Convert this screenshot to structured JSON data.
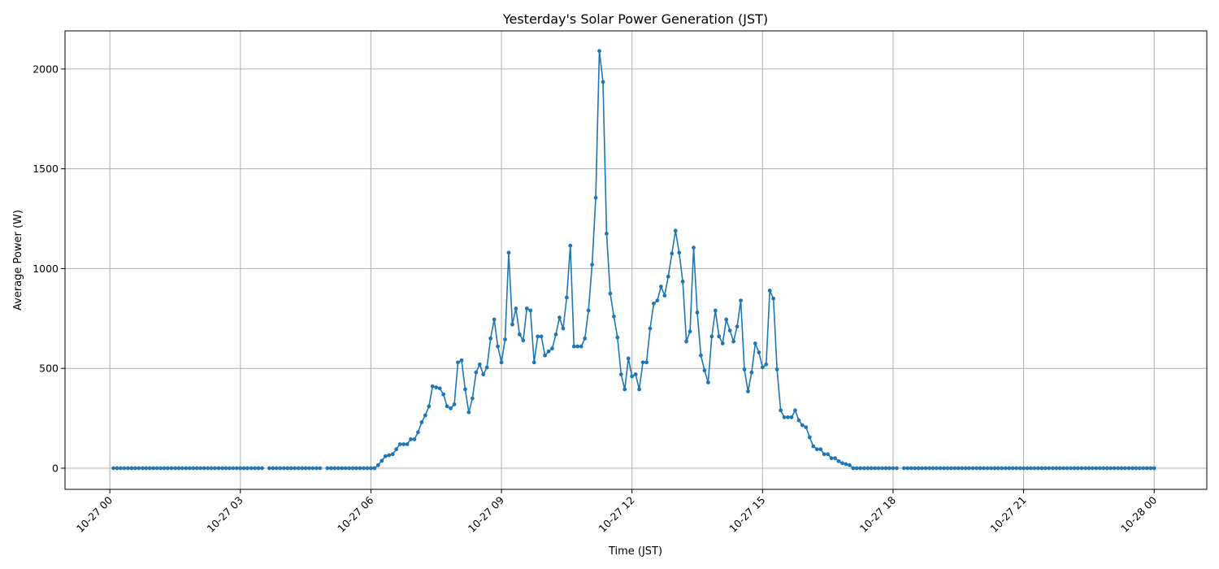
{
  "chart_data": {
    "type": "line",
    "title": "Yesterday's Solar Power Generation (JST)",
    "xlabel": "Time (JST)",
    "ylabel": "Average Power (W)",
    "x_start": "10-27 00:05",
    "x_step_minutes": 5,
    "xlim_hours": [
      -1.03,
      25.21
    ],
    "ylim": [
      -106,
      2191
    ],
    "grid": true,
    "marker": "dot",
    "color": "#1f77b4",
    "x_ticks": [
      {
        "hour": 0,
        "label": "10-27 00"
      },
      {
        "hour": 3,
        "label": "10-27 03"
      },
      {
        "hour": 6,
        "label": "10-27 06"
      },
      {
        "hour": 9,
        "label": "10-27 09"
      },
      {
        "hour": 12,
        "label": "10-27 12"
      },
      {
        "hour": 15,
        "label": "10-27 15"
      },
      {
        "hour": 18,
        "label": "10-27 18"
      },
      {
        "hour": 21,
        "label": "10-27 21"
      },
      {
        "hour": 24,
        "label": "10-28 00"
      }
    ],
    "y_ticks": [
      {
        "value": 0,
        "label": "0"
      },
      {
        "value": 500,
        "label": "500"
      },
      {
        "value": 1000,
        "label": "1000"
      },
      {
        "value": 1500,
        "label": "1500"
      },
      {
        "value": 2000,
        "label": "2000"
      }
    ],
    "values": [
      0,
      0,
      0,
      0,
      0,
      0,
      0,
      0,
      0,
      0,
      0,
      0,
      0,
      0,
      0,
      0,
      0,
      0,
      0,
      0,
      0,
      0,
      0,
      0,
      0,
      0,
      0,
      0,
      0,
      0,
      0,
      0,
      0,
      0,
      0,
      0,
      0,
      0,
      0,
      0,
      0,
      0,
      null,
      0,
      0,
      0,
      0,
      0,
      0,
      0,
      0,
      0,
      0,
      0,
      0,
      0,
      0,
      0,
      null,
      0,
      0,
      0,
      0,
      0,
      0,
      0,
      0,
      0,
      0,
      0,
      0,
      0,
      0,
      15,
      37,
      60,
      65,
      70,
      95,
      120,
      120,
      120,
      145,
      145,
      180,
      230,
      265,
      310,
      410,
      405,
      400,
      370,
      310,
      300,
      320,
      530,
      540,
      395,
      280,
      350,
      480,
      520,
      470,
      505,
      650,
      745,
      610,
      530,
      645,
      1080,
      720,
      800,
      670,
      640,
      800,
      790,
      530,
      660,
      660,
      565,
      585,
      600,
      670,
      755,
      700,
      855,
      1115,
      610,
      610,
      610,
      650,
      790,
      1020,
      1355,
      2090,
      1935,
      1175,
      875,
      760,
      655,
      470,
      395,
      550,
      460,
      470,
      395,
      530,
      530,
      700,
      825,
      840,
      910,
      865,
      960,
      1075,
      1190,
      1080,
      935,
      635,
      685,
      1105,
      780,
      565,
      490,
      430,
      660,
      790,
      660,
      625,
      745,
      690,
      635,
      710,
      840,
      495,
      385,
      480,
      625,
      580,
      505,
      520,
      890,
      850,
      495,
      290,
      255,
      255,
      255,
      290,
      240,
      215,
      205,
      155,
      110,
      95,
      95,
      70,
      70,
      50,
      50,
      35,
      25,
      20,
      15,
      0,
      0,
      0,
      0,
      0,
      0,
      0,
      0,
      0,
      0,
      0,
      0,
      0,
      null,
      0,
      0,
      0,
      0,
      0,
      0,
      0,
      0,
      0,
      0,
      0,
      0,
      0,
      0,
      0,
      0,
      0,
      0,
      0,
      0,
      0,
      0,
      0,
      0,
      0,
      0,
      0,
      0,
      0,
      0,
      0,
      0,
      0,
      0,
      0,
      0,
      0,
      0,
      0,
      0,
      0,
      0,
      0,
      0,
      0,
      0,
      0,
      0,
      0,
      0,
      0,
      0,
      0,
      0,
      0,
      0,
      0,
      0,
      0,
      0,
      0,
      0,
      0,
      0,
      0,
      0,
      0,
      0,
      0,
      0
    ]
  }
}
